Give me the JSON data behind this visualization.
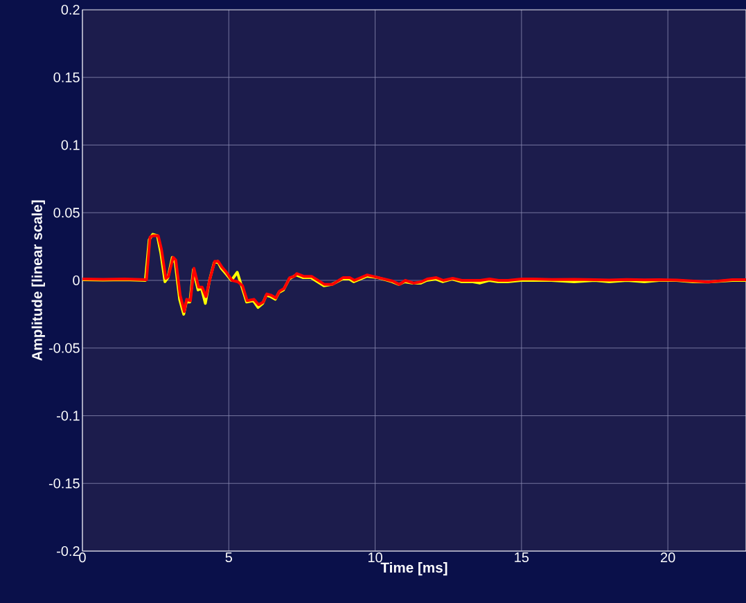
{
  "chart_data": {
    "type": "line",
    "xlabel": "Time [ms]",
    "ylabel": "Amplitude [linear scale]",
    "xlim": [
      0,
      22.67
    ],
    "ylim": [
      -0.2,
      0.2
    ],
    "xticks": [
      0,
      5,
      10,
      15,
      20
    ],
    "yticks": [
      -0.2,
      -0.15,
      -0.1,
      -0.05,
      0,
      0.05,
      0.1,
      0.15,
      0.2
    ],
    "grid": true,
    "line_style": "solid",
    "marker": "none",
    "series": [
      {
        "color": "#ffff00",
        "x": [
          0,
          0.7,
          1.44,
          2.15,
          2.28,
          2.4,
          2.56,
          2.68,
          2.82,
          2.92,
          3.07,
          3.17,
          3.32,
          3.46,
          3.55,
          3.67,
          3.79,
          3.95,
          4.07,
          4.2,
          4.34,
          4.5,
          4.62,
          4.74,
          4.9,
          5.09,
          5.29,
          5.45,
          5.61,
          5.84,
          6.0,
          6.16,
          6.28,
          6.43,
          6.59,
          6.71,
          6.87,
          7.06,
          7.22,
          7.3,
          7.54,
          7.81,
          8.25,
          8.52,
          8.88,
          9.12,
          9.27,
          9.71,
          10.1,
          10.58,
          10.81,
          11.01,
          11.29,
          11.56,
          11.76,
          12.07,
          12.31,
          12.63,
          12.94,
          13.34,
          13.57,
          13.89,
          14.2,
          14.52,
          14.99,
          15.39,
          16.02,
          16.8,
          17.5,
          18.0,
          18.6,
          19.2,
          19.7,
          20.3,
          20.85,
          21.4,
          22.2,
          22.67
        ],
        "values": [
          0.0005,
          0.0003,
          0.0005,
          0.0,
          0.03,
          0.034,
          0.033,
          0.02,
          -0.001,
          0.002,
          0.017,
          0.013,
          -0.014,
          -0.025,
          -0.016,
          -0.016,
          0.008,
          -0.007,
          -0.006,
          -0.017,
          0.0,
          0.013,
          0.014,
          0.009,
          0.005,
          0.0,
          0.006,
          -0.005,
          -0.016,
          -0.015,
          -0.02,
          -0.017,
          -0.011,
          -0.012,
          -0.014,
          -0.009,
          -0.007,
          0.001,
          0.003,
          0.004,
          0.002,
          0.002,
          -0.004,
          -0.003,
          0.001,
          0.001,
          -0.001,
          0.003,
          0.002,
          -0.001,
          -0.003,
          -0.001,
          -0.002,
          -0.002,
          0.0,
          0.001,
          -0.001,
          0.001,
          -0.001,
          -0.001,
          -0.002,
          0.0,
          -0.001,
          -0.001,
          0.0,
          0.0,
          0.0,
          -0.001,
          0.0,
          -0.001,
          0.0,
          -0.001,
          0.0,
          0.0,
          -0.001,
          -0.0012,
          0.0,
          0.0
        ]
      },
      {
        "color": "#ff0000",
        "x": [
          0,
          0.7,
          1.44,
          2.19,
          2.31,
          2.43,
          2.59,
          2.7,
          2.85,
          2.94,
          3.1,
          3.19,
          3.34,
          3.48,
          3.56,
          3.69,
          3.81,
          3.97,
          4.09,
          4.22,
          4.36,
          4.52,
          4.64,
          4.76,
          4.92,
          5.11,
          5.31,
          5.47,
          5.63,
          5.86,
          6.02,
          6.18,
          6.3,
          6.45,
          6.61,
          6.73,
          6.89,
          7.08,
          7.24,
          7.32,
          7.56,
          7.83,
          8.27,
          8.54,
          8.9,
          9.14,
          9.29,
          9.73,
          10.12,
          10.6,
          10.83,
          11.03,
          11.31,
          11.58,
          11.78,
          12.09,
          12.33,
          12.65,
          12.96,
          13.36,
          13.59,
          13.91,
          14.22,
          14.54,
          15.01,
          15.41,
          16.04,
          16.8,
          17.5,
          18.0,
          18.6,
          19.2,
          19.7,
          20.3,
          20.85,
          21.4,
          22.2,
          22.67
        ],
        "values": [
          0.001,
          0.0008,
          0.001,
          0.0005,
          0.032,
          0.033,
          0.033,
          0.023,
          0.0014,
          0.003,
          0.017,
          0.015,
          -0.011,
          -0.023,
          -0.014,
          -0.015,
          0.009,
          -0.005,
          -0.005,
          -0.012,
          0.0014,
          0.014,
          0.014,
          0.01,
          0.006,
          0.0,
          -0.001,
          -0.004,
          -0.015,
          -0.014,
          -0.018,
          -0.016,
          -0.01,
          -0.011,
          -0.013,
          -0.008,
          -0.006,
          0.002,
          0.003,
          0.005,
          0.003,
          0.003,
          -0.003,
          -0.003,
          0.002,
          0.002,
          0.0,
          0.004,
          0.002,
          -0.0005,
          -0.003,
          0.0,
          -0.002,
          -0.001,
          0.001,
          0.002,
          0.0,
          0.0015,
          0.0,
          0.0,
          0.0,
          0.001,
          0.0,
          0.0,
          0.001,
          0.001,
          0.0007,
          0.0008,
          0.0005,
          0.0003,
          0.0006,
          0.0004,
          0.0005,
          0.0002,
          -0.0005,
          -0.0012,
          0.0005,
          0.0005
        ]
      }
    ]
  }
}
